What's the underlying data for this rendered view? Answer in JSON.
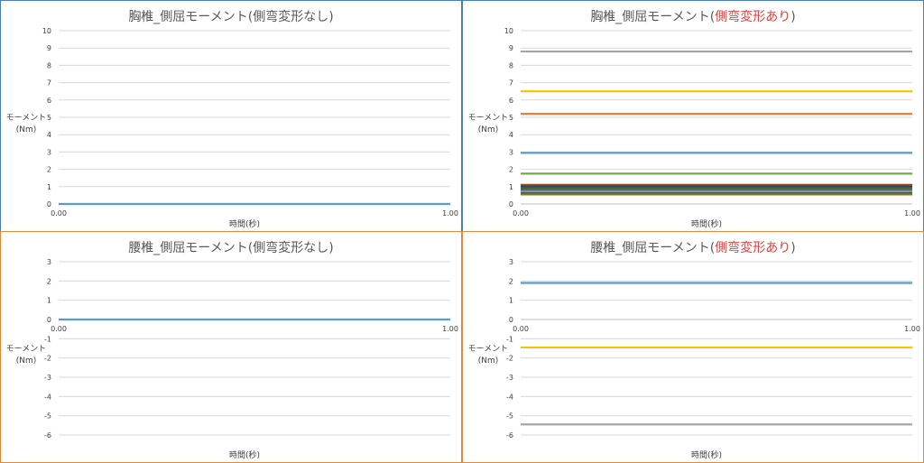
{
  "chart_data": [
    {
      "type": "line",
      "title": "胸椎_側屈モーメント(側弯変形なし)",
      "title_parts": [
        {
          "text": "胸椎_側屈モーメント(側弯変形なし)",
          "color": "#595959"
        }
      ],
      "xlabel": "時間(秒)",
      "ylabel_line1": "モーメント",
      "ylabel_line2": "(Nm)",
      "x": [
        0.0,
        1.0
      ],
      "x_tick_labels": [
        "0.00",
        "1.00"
      ],
      "ylim": [
        0,
        10
      ],
      "y_ticks": [
        "0",
        "1",
        "2",
        "3",
        "4",
        "5",
        "6",
        "7",
        "8",
        "9",
        "10"
      ],
      "grid": true,
      "series": [
        {
          "color": "#5b9bd5",
          "values": [
            0,
            0
          ]
        }
      ]
    },
    {
      "type": "line",
      "title": "胸椎_側屈モーメント(側弯変形あり)",
      "title_parts": [
        {
          "text": "胸椎_側屈モーメント(",
          "color": "#595959"
        },
        {
          "text": "側弯変形あり",
          "color": "#e04040"
        },
        {
          "text": ")",
          "color": "#595959"
        }
      ],
      "xlabel": "時間(秒)",
      "ylabel_line1": "モーメント",
      "ylabel_line2": "(Nm)",
      "x": [
        0.0,
        1.0
      ],
      "x_tick_labels": [
        "0.00",
        "1.00"
      ],
      "ylim": [
        0,
        10
      ],
      "y_ticks": [
        "0",
        "1",
        "2",
        "3",
        "4",
        "5",
        "6",
        "7",
        "8",
        "9",
        "10"
      ],
      "grid": true,
      "series": [
        {
          "color": "#a5a5a5",
          "values": [
            8.8,
            8.8
          ]
        },
        {
          "color": "#ffc000",
          "values": [
            6.5,
            6.5
          ]
        },
        {
          "color": "#ed7d31",
          "values": [
            5.2,
            5.2
          ]
        },
        {
          "color": "#5b9bd5",
          "values": [
            2.95,
            2.95
          ]
        },
        {
          "color": "#70ad47",
          "values": [
            1.75,
            1.75
          ]
        },
        {
          "color": "#9e480e",
          "values": [
            1.1,
            1.1
          ]
        },
        {
          "color": "#264478",
          "values": [
            1.0,
            1.0
          ]
        },
        {
          "color": "#43682b",
          "values": [
            0.9,
            0.9
          ]
        },
        {
          "color": "#636363",
          "values": [
            0.8,
            0.8
          ]
        },
        {
          "color": "#255e91",
          "values": [
            0.65,
            0.65
          ]
        },
        {
          "color": "#997300",
          "values": [
            0.55,
            0.55
          ]
        }
      ]
    },
    {
      "type": "line",
      "title": "腰椎_側屈モーメント(側弯変形なし)",
      "title_parts": [
        {
          "text": "腰椎_側屈モーメント(側弯変形なし)",
          "color": "#595959"
        }
      ],
      "xlabel": "時間(秒)",
      "ylabel_line1": "モーメント",
      "ylabel_line2": "(Nm)",
      "x": [
        0.0,
        1.0
      ],
      "x_tick_labels": [
        "0.00",
        "1.00"
      ],
      "ylim": [
        -6,
        3
      ],
      "y_ticks": [
        "-6",
        "-5",
        "-4",
        "-3",
        "-2",
        "-1",
        "0",
        "1",
        "2",
        "3"
      ],
      "grid": true,
      "series": [
        {
          "color": "#5b9bd5",
          "values": [
            0,
            0
          ]
        }
      ]
    },
    {
      "type": "line",
      "title": "腰椎_側屈モーメント(側弯変形あり)",
      "title_parts": [
        {
          "text": "腰椎_側屈モーメント(",
          "color": "#595959"
        },
        {
          "text": "側弯変形あり",
          "color": "#e04040"
        },
        {
          "text": ")",
          "color": "#595959"
        }
      ],
      "xlabel": "時間(秒)",
      "ylabel_line1": "モーメント",
      "ylabel_line2": "(Nm)",
      "x": [
        0.0,
        1.0
      ],
      "x_tick_labels": [
        "0.00",
        "1.00"
      ],
      "ylim": [
        -6,
        3
      ],
      "y_ticks": [
        "-6",
        "-5",
        "-4",
        "-3",
        "-2",
        "-1",
        "0",
        "1",
        "2",
        "3"
      ],
      "grid": true,
      "series": [
        {
          "color": "#5b9bd5",
          "values": [
            1.9,
            1.9
          ]
        },
        {
          "color": "#ffc000",
          "values": [
            -1.45,
            -1.45
          ]
        },
        {
          "color": "#a5a5a5",
          "values": [
            -5.45,
            -5.45
          ]
        }
      ]
    }
  ]
}
